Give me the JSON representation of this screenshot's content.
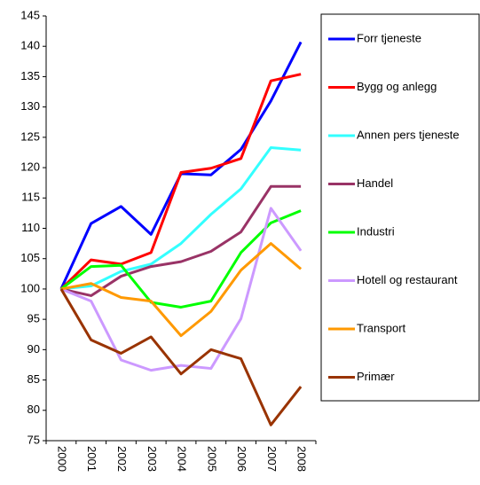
{
  "chart_data": {
    "type": "line",
    "categories": [
      "2000",
      "2001",
      "2002",
      "2003",
      "2004",
      "2005",
      "2006",
      "2007",
      "2008"
    ],
    "series": [
      {
        "name": "Forr tjeneste",
        "color": "#0000ff",
        "values": [
          100,
          110.8,
          113.6,
          109,
          119,
          118.8,
          123,
          131,
          140.7
        ]
      },
      {
        "name": "Bygg og anlegg",
        "color": "#ff0000",
        "values": [
          100,
          104.8,
          104.1,
          106,
          119.2,
          119.9,
          121.5,
          134.3,
          135.4
        ]
      },
      {
        "name": "Annen pers tjeneste",
        "color": "#33ffff",
        "values": [
          100,
          100.5,
          102.9,
          104.1,
          107.5,
          112.3,
          116.5,
          123.3,
          122.9
        ]
      },
      {
        "name": "Handel",
        "color": "#993366",
        "values": [
          100,
          98.9,
          102.1,
          103.7,
          104.5,
          106.2,
          109.4,
          116.9,
          116.9
        ]
      },
      {
        "name": "Industri",
        "color": "#00ff00",
        "values": [
          100,
          103.7,
          103.9,
          97.8,
          97,
          98,
          106,
          110.9,
          112.9
        ]
      },
      {
        "name": "Hotell og restaurant",
        "color": "#cc99ff",
        "values": [
          100,
          98,
          88.3,
          86.6,
          87.4,
          86.9,
          95.1,
          113.3,
          106.3
        ]
      },
      {
        "name": "Transport",
        "color": "#ff9900",
        "values": [
          100,
          100.9,
          98.6,
          98,
          92.3,
          96.3,
          103.1,
          107.5,
          103.3
        ]
      },
      {
        "name": "Primær",
        "color": "#993300",
        "values": [
          100,
          91.6,
          89.4,
          92.1,
          86,
          90,
          88.5,
          77.6,
          83.9
        ]
      }
    ],
    "ylim": [
      75,
      145
    ],
    "yticks": [
      75,
      80,
      85,
      90,
      95,
      100,
      105,
      110,
      115,
      120,
      125,
      130,
      135,
      140,
      145
    ],
    "grid": false,
    "legend": "right"
  }
}
